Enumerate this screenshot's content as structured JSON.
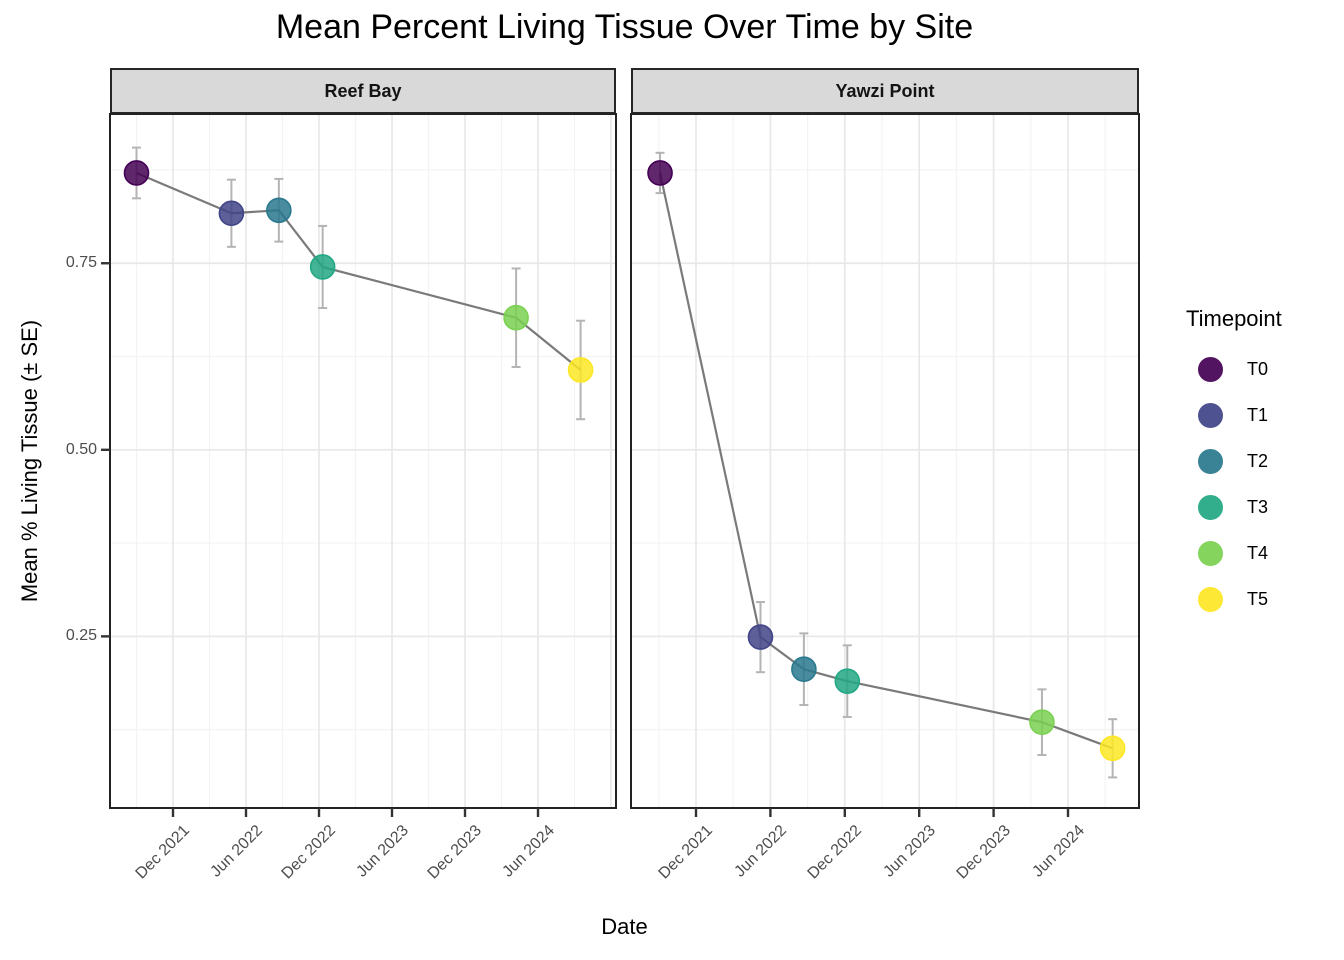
{
  "page": {
    "background": "#ffffff"
  },
  "chart_data": {
    "type": "line",
    "title": "Mean Percent Living Tissue Over Time by Site",
    "xlabel": "Date",
    "ylabel": "Mean % Living Tissue (± SE)",
    "grid": true,
    "ylim": [
      0.02,
      0.95
    ],
    "y_ticks": [
      0.75,
      0.5,
      0.25
    ],
    "y_tick_labels": [
      "0.75",
      "0.50",
      "0.25"
    ],
    "y_minor_gridlines": [
      0.875,
      0.625,
      0.375,
      0.125
    ],
    "x_tick_labels": [
      "Dec 2021",
      "Jun 2022",
      "Dec 2022",
      "Jun 2023",
      "Dec 2023",
      "Jun 2024"
    ],
    "x_tick_months": [
      0,
      6,
      12,
      18,
      24,
      30
    ],
    "x_major_gridline_months": [
      0,
      6,
      12,
      18,
      24,
      30,
      36
    ],
    "x_minor_gridline_months": [
      -3,
      3,
      9,
      15,
      21,
      27,
      33
    ],
    "legend": {
      "title": "Timepoint",
      "position": "right",
      "entries": [
        {
          "label": "T0",
          "color": "#440154"
        },
        {
          "label": "T1",
          "color": "#414487"
        },
        {
          "label": "T2",
          "color": "#2A788E"
        },
        {
          "label": "T3",
          "color": "#22A884"
        },
        {
          "label": "T4",
          "color": "#7AD151"
        },
        {
          "label": "T5",
          "color": "#FDE725"
        }
      ]
    },
    "facets": [
      {
        "label": "Reef Bay",
        "points": [
          {
            "timepoint": "T0",
            "date_est": "Sep 2021",
            "x_months": -3.0,
            "mean": 0.871,
            "se": 0.034
          },
          {
            "timepoint": "T1",
            "date_est": "May 2022",
            "x_months": 4.8,
            "mean": 0.817,
            "se": 0.045
          },
          {
            "timepoint": "T2",
            "date_est": "Aug 2022",
            "x_months": 8.7,
            "mean": 0.821,
            "se": 0.042
          },
          {
            "timepoint": "T3",
            "date_est": "Dec 2022",
            "x_months": 12.3,
            "mean": 0.745,
            "se": 0.055
          },
          {
            "timepoint": "T4",
            "date_est": "Apr 2024",
            "x_months": 28.2,
            "mean": 0.677,
            "se": 0.066
          },
          {
            "timepoint": "T5",
            "date_est": "Sep 2024",
            "x_months": 33.5,
            "mean": 0.607,
            "se": 0.066
          }
        ]
      },
      {
        "label": "Yawzi Point",
        "points": [
          {
            "timepoint": "T0",
            "date_est": "Sep 2021",
            "x_months": -2.9,
            "mean": 0.871,
            "se": 0.027
          },
          {
            "timepoint": "T1",
            "date_est": "May 2022",
            "x_months": 5.2,
            "mean": 0.249,
            "se": 0.047
          },
          {
            "timepoint": "T2",
            "date_est": "Sep 2022",
            "x_months": 8.7,
            "mean": 0.206,
            "se": 0.048
          },
          {
            "timepoint": "T3",
            "date_est": "Dec 2022",
            "x_months": 12.2,
            "mean": 0.19,
            "se": 0.048
          },
          {
            "timepoint": "T4",
            "date_est": "Apr 2024",
            "x_months": 27.9,
            "mean": 0.135,
            "se": 0.044
          },
          {
            "timepoint": "T5",
            "date_est": "Sep 2024",
            "x_months": 33.6,
            "mean": 0.1,
            "se": 0.039
          }
        ]
      }
    ],
    "style": {
      "point_fill_opacity": 0.85,
      "line_color": "#7a7a7a",
      "errorbar_color": "#b4b4b4",
      "strip_background": "#d9d9d9",
      "panel_border_color": "#222222",
      "grid_major_color": "#e8e8e8",
      "grid_minor_color": "#f3f3f3",
      "tick_color": "#333333",
      "tick_label_color": "#4d4d4d"
    }
  }
}
